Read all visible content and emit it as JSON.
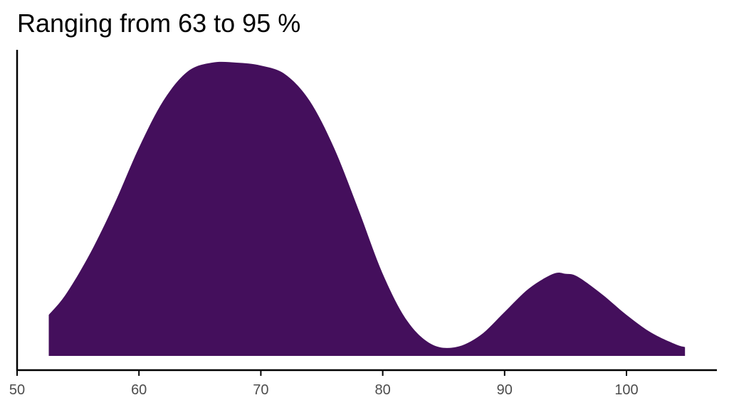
{
  "title": "Ranging from 63 to 95 %",
  "chart_data": {
    "type": "area",
    "title": "Ranging from 63 to 95 %",
    "xlabel": "",
    "ylabel": "",
    "xlim": [
      50,
      107
    ],
    "ylim": [
      0,
      1
    ],
    "grid": false,
    "legend": "none",
    "fill_color": "#440f5c",
    "x_ticks": [
      "50",
      "60",
      "70",
      "80",
      "90",
      "100"
    ],
    "x_tick_values": [
      50,
      60,
      70,
      80,
      90,
      100
    ],
    "series": [
      {
        "x": [
          52.6,
          54,
          56,
          58,
          60,
          62,
          64,
          66,
          68,
          70,
          72,
          74,
          76,
          78,
          80,
          82,
          84,
          86,
          88,
          90,
          92,
          94,
          95,
          96,
          98,
          100,
          102,
          104,
          104.8
        ],
        "y": [
          0.14,
          0.21,
          0.35,
          0.52,
          0.71,
          0.87,
          0.97,
          1.0,
          1.0,
          0.99,
          0.96,
          0.87,
          0.71,
          0.5,
          0.28,
          0.12,
          0.04,
          0.03,
          0.07,
          0.15,
          0.23,
          0.28,
          0.28,
          0.27,
          0.21,
          0.14,
          0.08,
          0.04,
          0.03
        ]
      }
    ]
  }
}
